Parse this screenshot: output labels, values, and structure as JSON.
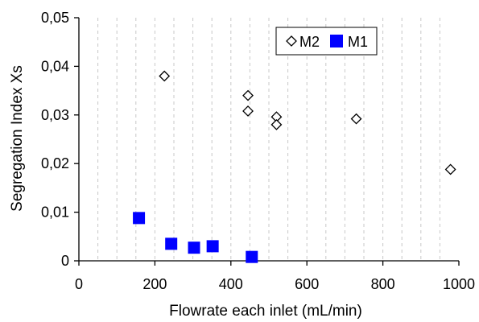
{
  "chart_data": {
    "type": "scatter",
    "title": "",
    "xlabel": "Flowrate each inlet (mL/min)",
    "ylabel": "Segregation Index Xs",
    "xlim": [
      0,
      1000
    ],
    "ylim": [
      0,
      0.05
    ],
    "x_ticks": [
      0,
      200,
      400,
      600,
      800,
      1000
    ],
    "x_tick_labels": [
      "0",
      "200",
      "400",
      "600",
      "800",
      "1000"
    ],
    "y_ticks": [
      0,
      0.01,
      0.02,
      0.03,
      0.04,
      0.05
    ],
    "y_tick_labels": [
      "0",
      "0,01",
      "0,02",
      "0,03",
      "0,04",
      "0,05"
    ],
    "grid": "vertical dashed minor gridlines",
    "legend": {
      "placement": "top-right"
    },
    "series": [
      {
        "name": "M2",
        "marker": "diamond-open",
        "color": "#000000",
        "points": [
          {
            "x": 225,
            "y": 0.038
          },
          {
            "x": 445,
            "y": 0.034
          },
          {
            "x": 445,
            "y": 0.0308
          },
          {
            "x": 520,
            "y": 0.0296
          },
          {
            "x": 520,
            "y": 0.028
          },
          {
            "x": 730,
            "y": 0.0292
          },
          {
            "x": 978,
            "y": 0.0188
          }
        ]
      },
      {
        "name": "M1",
        "marker": "square-filled",
        "color": "#0000ff",
        "points": [
          {
            "x": 158,
            "y": 0.0088
          },
          {
            "x": 243,
            "y": 0.0035
          },
          {
            "x": 303,
            "y": 0.0027
          },
          {
            "x": 352,
            "y": 0.003
          },
          {
            "x": 455,
            "y": 0.0008
          }
        ]
      }
    ]
  }
}
